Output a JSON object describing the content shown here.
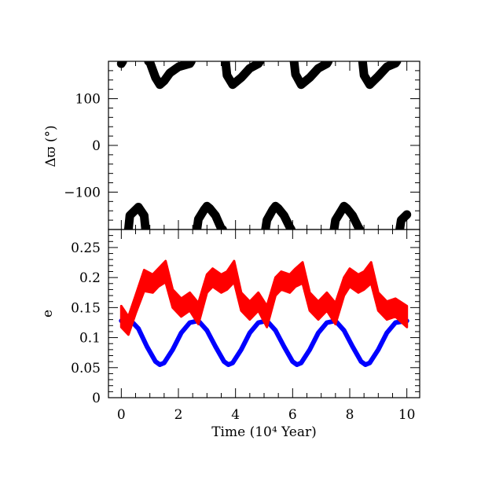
{
  "chart_data": [
    {
      "type": "scatter",
      "panel": "top",
      "title": "",
      "xlabel": "",
      "ylabel": "Δϖ (°)",
      "xlim": [
        -0.45,
        10.45
      ],
      "ylim": [
        -180,
        180
      ],
      "grid": false,
      "legend": "none",
      "y_ticks": [
        -100,
        0,
        100
      ],
      "y_tick_labels": [
        "−100",
        "0",
        "100"
      ],
      "series": [
        {
          "color": "#000000",
          "description_of_shape": "resonant angle librating around ±180 deg with period ~2.4e4 yr",
          "x": [
            0.0,
            0.3,
            0.6,
            0.8,
            1.0,
            1.2,
            1.35,
            1.5,
            1.7,
            2.0,
            2.4,
            2.7,
            2.9,
            3.0,
            3.1,
            3.3,
            3.5,
            3.7,
            3.9,
            4.2,
            4.5,
            4.8,
            5.1,
            5.3,
            5.4,
            5.5,
            5.7,
            5.9,
            6.1,
            6.3,
            6.6,
            6.9,
            7.2,
            7.5,
            7.7,
            7.8,
            7.9,
            8.1,
            8.3,
            8.5,
            8.7,
            9.0,
            9.3,
            9.6,
            9.8,
            10.0
          ],
          "y": [
            175,
            -150,
            -132,
            -150,
            178,
            145,
            130,
            138,
            155,
            168,
            175,
            -158,
            -138,
            -130,
            -135,
            -150,
            -178,
            150,
            130,
            145,
            165,
            175,
            -160,
            -138,
            -130,
            -135,
            -150,
            -175,
            152,
            130,
            145,
            165,
            175,
            -160,
            -140,
            -130,
            -135,
            -150,
            -175,
            150,
            130,
            148,
            168,
            176,
            -160,
            -148
          ]
        }
      ]
    },
    {
      "type": "line",
      "panel": "bottom",
      "title": "",
      "xlabel": "Time (10⁴ Year)",
      "ylabel": "e",
      "xlim": [
        -0.45,
        10.45
      ],
      "ylim": [
        0,
        0.28
      ],
      "grid": false,
      "legend": "none",
      "x_ticks": [
        0,
        2,
        4,
        6,
        8,
        10
      ],
      "x_tick_labels": [
        "0",
        "2",
        "4",
        "6",
        "8",
        "10"
      ],
      "y_ticks": [
        0,
        0.05,
        0.1,
        0.15,
        0.2,
        0.25
      ],
      "y_tick_labels": [
        "0",
        "0.05",
        "0.1",
        "0.15",
        "0.2",
        "0.25"
      ],
      "series": [
        {
          "color": "#0000ff",
          "x": [
            0.0,
            0.3,
            0.6,
            0.9,
            1.2,
            1.35,
            1.5,
            1.8,
            2.1,
            2.4,
            2.7,
            3.0,
            3.3,
            3.6,
            3.75,
            3.9,
            4.2,
            4.5,
            4.8,
            5.1,
            5.4,
            5.7,
            6.0,
            6.15,
            6.3,
            6.6,
            6.9,
            7.2,
            7.5,
            7.8,
            8.1,
            8.4,
            8.55,
            8.7,
            9.0,
            9.3,
            9.6,
            10.0
          ],
          "y": [
            0.128,
            0.13,
            0.115,
            0.085,
            0.06,
            0.055,
            0.058,
            0.08,
            0.108,
            0.125,
            0.128,
            0.112,
            0.085,
            0.06,
            0.055,
            0.058,
            0.08,
            0.108,
            0.125,
            0.128,
            0.112,
            0.085,
            0.06,
            0.055,
            0.058,
            0.08,
            0.108,
            0.125,
            0.128,
            0.112,
            0.085,
            0.06,
            0.055,
            0.058,
            0.08,
            0.108,
            0.125,
            0.128
          ]
        },
        {
          "color": "#ff0000",
          "x": [
            0.0,
            0.25,
            0.5,
            0.8,
            1.1,
            1.3,
            1.55,
            1.8,
            2.1,
            2.4,
            2.7,
            3.0,
            3.2,
            3.5,
            3.7,
            3.95,
            4.2,
            4.5,
            4.8,
            5.1,
            5.4,
            5.6,
            5.9,
            6.1,
            6.35,
            6.6,
            6.9,
            7.2,
            7.5,
            7.8,
            8.0,
            8.3,
            8.5,
            8.75,
            9.0,
            9.3,
            9.6,
            10.0
          ],
          "y": [
            0.135,
            0.12,
            0.155,
            0.195,
            0.19,
            0.2,
            0.21,
            0.165,
            0.15,
            0.16,
            0.14,
            0.19,
            0.2,
            0.19,
            0.195,
            0.21,
            0.16,
            0.145,
            0.16,
            0.135,
            0.185,
            0.195,
            0.19,
            0.2,
            0.208,
            0.16,
            0.145,
            0.16,
            0.14,
            0.185,
            0.2,
            0.19,
            0.195,
            0.208,
            0.16,
            0.145,
            0.15,
            0.135
          ],
          "band": [
            0.035,
            0.03,
            0.03,
            0.035,
            0.03,
            0.03,
            0.035,
            0.03,
            0.03,
            0.03,
            0.035,
            0.03,
            0.03,
            0.03,
            0.03,
            0.035,
            0.03,
            0.03,
            0.03,
            0.035,
            0.03,
            0.03,
            0.03,
            0.03,
            0.035,
            0.03,
            0.03,
            0.03,
            0.035,
            0.03,
            0.03,
            0.03,
            0.03,
            0.035,
            0.03,
            0.03,
            0.03,
            0.035
          ]
        }
      ]
    }
  ]
}
